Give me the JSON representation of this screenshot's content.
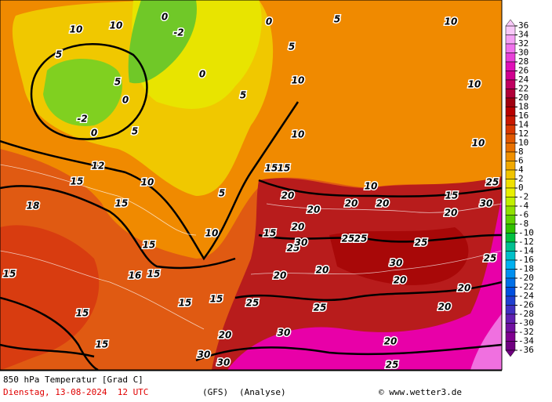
{
  "map": {
    "footer": {
      "title": "850 hPa Temperatur [Grad C]",
      "date": "Dienstag, 13-08-2024  12 UTC",
      "model": "(GFS)",
      "run": "(Analyse)",
      "credit": "© www.wetter3.de"
    },
    "colorbar": {
      "ticks": [
        36,
        34,
        32,
        30,
        28,
        26,
        24,
        22,
        20,
        18,
        16,
        14,
        12,
        10,
        8,
        6,
        4,
        2,
        0,
        -2,
        -4,
        -6,
        -8,
        -10,
        -12,
        -14,
        -16,
        -18,
        -20,
        -22,
        -24,
        -26,
        -28,
        -30,
        -32,
        -34,
        -36
      ],
      "colors": [
        "#f8c8f8",
        "#f4a0f4",
        "#f070ec",
        "#e840d8",
        "#e010b8",
        "#d00090",
        "#c00060",
        "#b00038",
        "#a00010",
        "#b80000",
        "#c81800",
        "#d83800",
        "#e05800",
        "#e87000",
        "#f09000",
        "#f0a800",
        "#f0c400",
        "#f0e000",
        "#e8f000",
        "#c0f000",
        "#90e000",
        "#60d000",
        "#30c000",
        "#00c040",
        "#00c090",
        "#00c0c8",
        "#00b0f0",
        "#0090f0",
        "#0070e8",
        "#0050e0",
        "#2040d0",
        "#4030c0",
        "#6020b0",
        "#7010a0",
        "#800090",
        "#700080"
      ]
    },
    "contour_labels": [
      10,
      10,
      5,
      5,
      0,
      0,
      5,
      10,
      15,
      15,
      15,
      15,
      15,
      15,
      15,
      15,
      10,
      15,
      15,
      20,
      20,
      20,
      20,
      25,
      25,
      25,
      25,
      25,
      25,
      25,
      20,
      20,
      20,
      20,
      20,
      20,
      30,
      30,
      30,
      30,
      30,
      30,
      25,
      20,
      20,
      20,
      15,
      15,
      10,
      10,
      10,
      10,
      10,
      10,
      5,
      5,
      5,
      5,
      0,
      0,
      0,
      -2,
      -2,
      25,
      15,
      12,
      18,
      16
    ]
  }
}
